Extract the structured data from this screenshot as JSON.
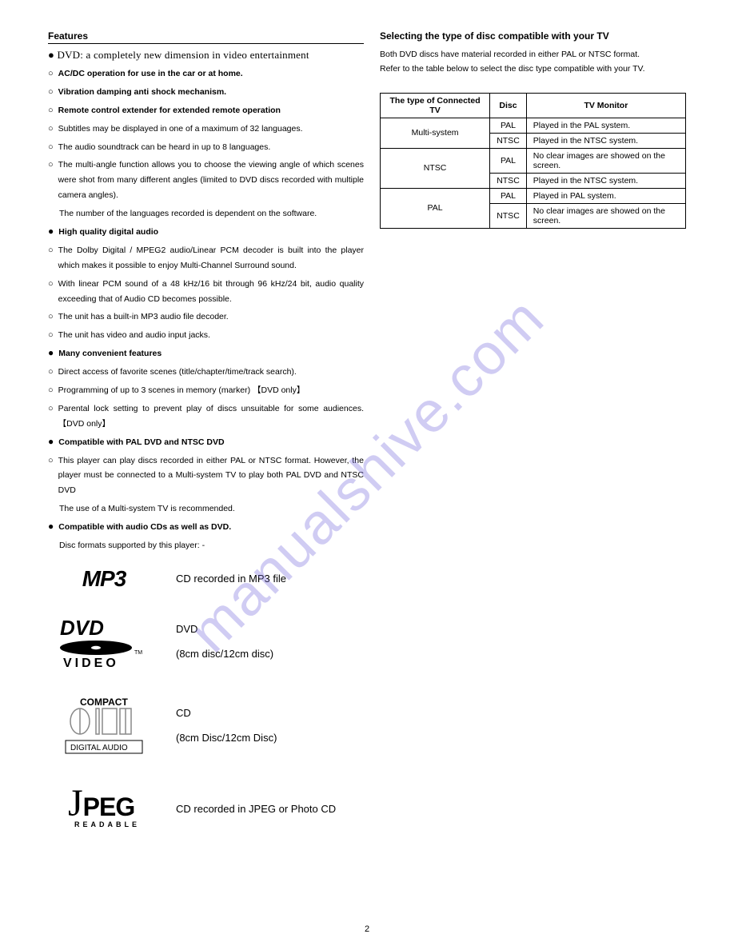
{
  "watermark": "manualshive.com",
  "page_number": "2",
  "left": {
    "title": "Features",
    "hero": "● DVD: a completely new dimension in video entertainment",
    "items": [
      {
        "bullet": "○",
        "text": "AC/DC operation for use in the car or at home.",
        "bold": true
      },
      {
        "bullet": "○",
        "text": "Vibration damping anti shock mechanism.",
        "bold": true
      },
      {
        "bullet": "○",
        "text": "Remote control extender for extended remote operation",
        "bold": true
      },
      {
        "bullet": "○",
        "text": "Subtitles may be displayed in one of a maximum of 32 languages.",
        "bold": false
      },
      {
        "bullet": "○",
        "text": "The audio soundtrack can be heard in up to 8 languages.",
        "bold": false
      },
      {
        "bullet": "○",
        "text": "The multi-angle function allows you to choose the viewing angle of which scenes were shot from many different angles (limited to DVD discs recorded with multiple camera angles).",
        "bold": false
      }
    ],
    "lang_note": "The number of the languages recorded is dependent on the software.",
    "sub_audio_head": {
      "bullet": "●",
      "text": "High quality digital audio",
      "bold": true
    },
    "audio_items": [
      {
        "bullet": "○",
        "text": "The Dolby Digital / MPEG2 audio/Linear PCM decoder is built into the player which makes it possible to enjoy Multi-Channel Surround sound.",
        "bold": false
      },
      {
        "bullet": "○",
        "text": "With linear PCM sound of a 48 kHz/16 bit through 96 kHz/24 bit, audio quality exceeding that of Audio CD becomes possible.",
        "bold": false
      },
      {
        "bullet": "○",
        "text": "The unit has a built-in MP3 audio file decoder.",
        "bold": false
      },
      {
        "bullet": "○",
        "text": "The unit has video and audio input jacks.",
        "bold": false
      }
    ],
    "sub_conv_head": {
      "bullet": "●",
      "text": "Many convenient features",
      "bold": true
    },
    "conv_items": [
      {
        "bullet": "○",
        "text": "Direct access of favorite scenes (title/chapter/time/track search).",
        "bold": false
      },
      {
        "bullet": "○",
        "text": "Programming of up to 3 scenes in memory (marker) 【DVD only】",
        "bold": false
      },
      {
        "bullet": "○",
        "text": "Parental lock setting to prevent play of discs unsuitable for some audiences. 【DVD only】",
        "bold": false
      }
    ],
    "sub_pal_head": {
      "bullet": "●",
      "text": "Compatible with PAL DVD and NTSC DVD",
      "bold": true
    },
    "pal_items": [
      {
        "bullet": "○",
        "text": "This player can play discs recorded in either PAL or NTSC format. However, the player must be connected to a Multi-system TV to play both PAL DVD  and NTSC DVD",
        "bold": false
      }
    ],
    "pal_note": "The use of a Multi-system TV is recommended.",
    "sub_cd_head": {
      "bullet": "●",
      "text": "Compatible with  audio CDs as well as DVD.",
      "bold": true
    },
    "cd_note": "Disc formats supported by this player: -",
    "formats": {
      "mp3": {
        "label": "MP3",
        "desc": "CD recorded in MP3 file"
      },
      "dvd": {
        "desc1": "DVD",
        "desc2": "(8cm disc/12cm disc)"
      },
      "cd": {
        "desc1": "CD",
        "desc2": "(8cm Disc/12cm Disc)"
      },
      "jpeg": {
        "desc": "CD  recorded in JPEG or Photo CD"
      }
    }
  },
  "right": {
    "title": "Selecting the type of disc compatible with your TV",
    "intro1": "Both DVD discs have material recorded in either PAL or NTSC format.",
    "intro2": "Refer to the table below to select the disc type compatible with your TV.",
    "table": {
      "headers": [
        "The type of Connected TV",
        "Disc",
        "TV Monitor"
      ],
      "rows": [
        {
          "tv": "Multi-system",
          "disc": "PAL",
          "monitor": "Played in the PAL system."
        },
        {
          "tv": "",
          "disc": "NTSC",
          "monitor": "Played in the NTSC system."
        },
        {
          "tv": "NTSC",
          "disc": "PAL",
          "monitor": "No clear images are showed on the screen."
        },
        {
          "tv": "",
          "disc": "NTSC",
          "monitor": "Played in the NTSC system."
        },
        {
          "tv": "PAL",
          "disc": "PAL",
          "monitor": "Played in PAL system."
        },
        {
          "tv": "",
          "disc": "NTSC",
          "monitor": "No clear images are showed on the screen."
        }
      ]
    }
  }
}
